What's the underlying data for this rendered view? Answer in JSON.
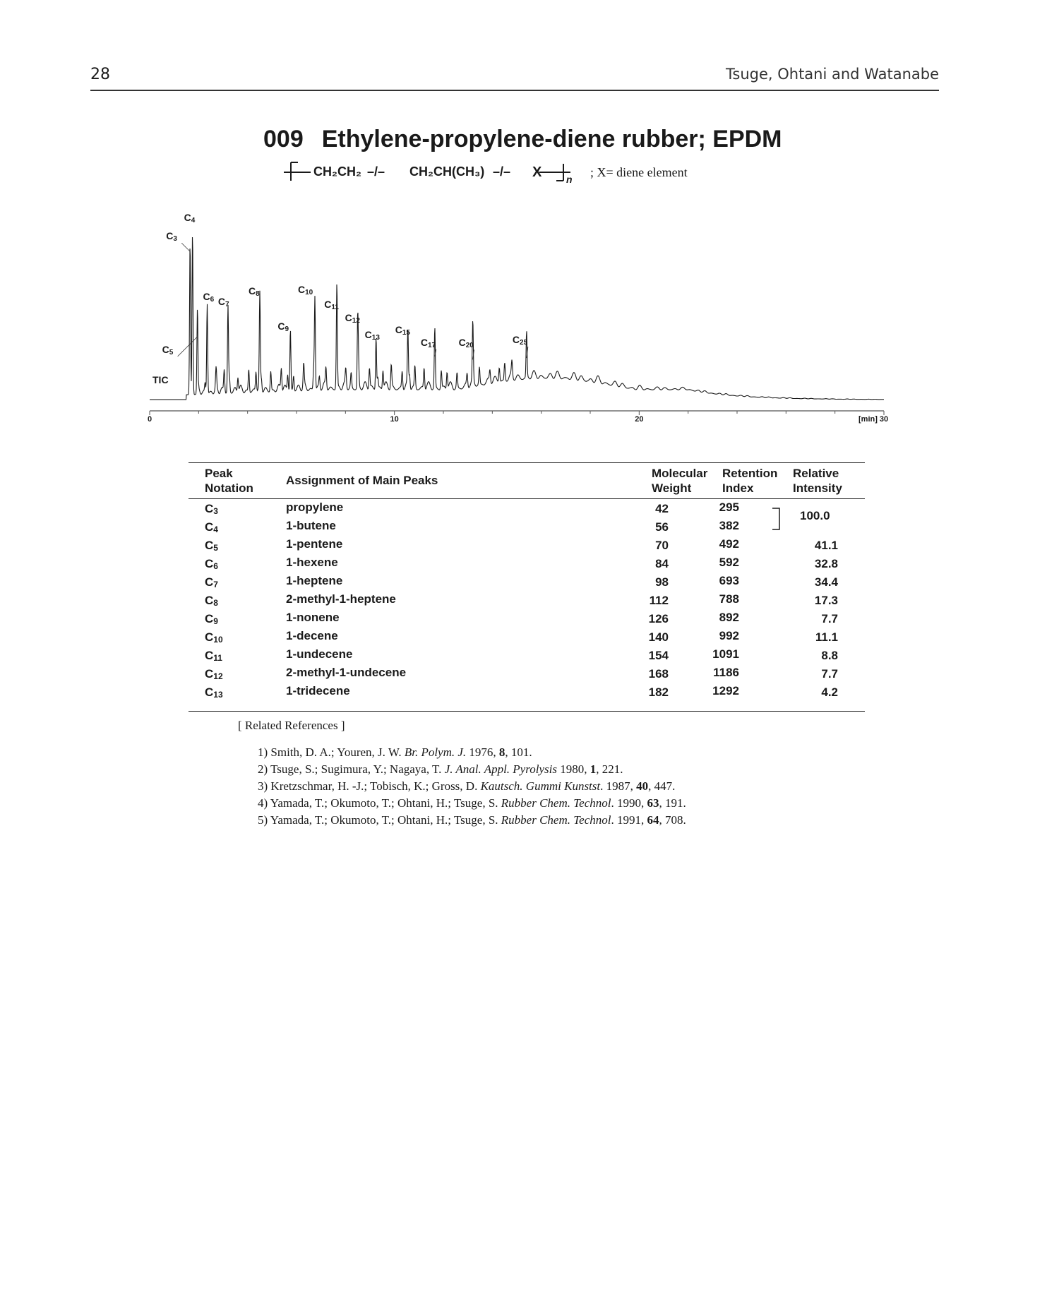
{
  "header": {
    "page_number": "28",
    "authors": "Tsuge, Ohtani and Watanabe"
  },
  "title": {
    "number": "009",
    "text": "Ethylene-propylene-diene rubber; EPDM"
  },
  "formula": {
    "part1": "CH₂CH₂",
    "sep1": "–/–",
    "part2": "CH₂CH(CH₃)",
    "sep2": "–/–",
    "part3": "X",
    "subscript": "n",
    "note": "; X= diene element"
  },
  "chart_data": {
    "type": "line",
    "trace_label": "TIC",
    "x_unit": "[min]",
    "xlim": [
      0,
      30
    ],
    "x_ticks": [
      0,
      10,
      20,
      30
    ],
    "peaks": [
      {
        "label": "C3",
        "base": "C",
        "sub": "3",
        "x": 1.65,
        "rel": 0.93
      },
      {
        "label": "C4",
        "base": "C",
        "sub": "4",
        "x": 1.75,
        "rel": 1.0
      },
      {
        "label": "C5",
        "base": "C",
        "sub": "5",
        "x": 1.95,
        "rel": 0.41
      },
      {
        "label": "C6",
        "base": "C",
        "sub": "6",
        "x": 2.35,
        "rel": 0.55
      },
      {
        "label": "C7",
        "base": "C",
        "sub": "7",
        "x": 3.2,
        "rel": 0.53
      },
      {
        "label": "C8",
        "base": "C",
        "sub": "8",
        "x": 4.5,
        "rel": 0.57
      },
      {
        "label": "C9",
        "base": "C",
        "sub": "9",
        "x": 5.75,
        "rel": 0.37
      },
      {
        "label": "C10",
        "base": "C",
        "sub": "10",
        "x": 6.75,
        "rel": 0.57
      },
      {
        "label": "C11",
        "base": "C",
        "sub": "11",
        "x": 7.65,
        "rel": 0.52
      },
      {
        "label": "C12",
        "base": "C",
        "sub": "12",
        "x": 8.5,
        "rel": 0.43
      },
      {
        "label": "C13",
        "base": "C",
        "sub": "13",
        "x": 9.25,
        "rel": 0.32
      },
      {
        "label": "C15",
        "base": "C",
        "sub": "15",
        "x": 10.55,
        "rel": 0.34
      },
      {
        "label": "C17",
        "base": "C",
        "sub": "17",
        "x": 11.65,
        "rel": 0.29
      },
      {
        "label": "C20",
        "base": "C",
        "sub": "20",
        "x": 13.2,
        "rel": 0.27
      },
      {
        "label": "C25",
        "base": "C",
        "sub": "25",
        "x": 15.4,
        "rel": 0.28
      }
    ]
  },
  "table": {
    "headers": {
      "peak": [
        "Peak",
        "Notation"
      ],
      "assignment": "Assignment of Main Peaks",
      "mw": [
        "Molecular",
        "Weight"
      ],
      "ri": [
        "Retention",
        "Index"
      ],
      "intensity": [
        "Relative",
        "Intensity"
      ]
    },
    "rows": [
      {
        "base": "C",
        "sub": "3",
        "name": "propylene",
        "mw": "42",
        "ri": "295",
        "int": ""
      },
      {
        "base": "C",
        "sub": "4",
        "name": "1-butene",
        "mw": "56",
        "ri": "382",
        "int": ""
      },
      {
        "base": "C",
        "sub": "5",
        "name": "1-pentene",
        "mw": "70",
        "ri": "492",
        "int": "41.1"
      },
      {
        "base": "C",
        "sub": "6",
        "name": "1-hexene",
        "mw": "84",
        "ri": "592",
        "int": "32.8"
      },
      {
        "base": "C",
        "sub": "7",
        "name": "1-heptene",
        "mw": "98",
        "ri": "693",
        "int": "34.4"
      },
      {
        "base": "C",
        "sub": "8",
        "name": "2-methyl-1-heptene",
        "mw": "112",
        "ri": "788",
        "int": "17.3"
      },
      {
        "base": "C",
        "sub": "9",
        "name": "1-nonene",
        "mw": "126",
        "ri": "892",
        "int": "7.7"
      },
      {
        "base": "C",
        "sub": "10",
        "name": "1-decene",
        "mw": "140",
        "ri": "992",
        "int": "11.1"
      },
      {
        "base": "C",
        "sub": "11",
        "name": "1-undecene",
        "mw": "154",
        "ri": "1091",
        "int": "8.8"
      },
      {
        "base": "C",
        "sub": "12",
        "name": "2-methyl-1-undecene",
        "mw": "168",
        "ri": "1186",
        "int": "7.7"
      },
      {
        "base": "C",
        "sub": "13",
        "name": "1-tridecene",
        "mw": "182",
        "ri": "1292",
        "int": "4.2"
      }
    ],
    "c3c4_intensity": "100.0"
  },
  "references": {
    "heading": "[ Related References ]",
    "items": [
      {
        "pre": "1) Smith, D. A.; Youren, J. W. ",
        "journal": "Br. Polym. J.",
        "year": " 1976, ",
        "vol": "8",
        "pages": ", 101."
      },
      {
        "pre": "2) Tsuge, S.; Sugimura, Y.; Nagaya, T. ",
        "journal": "J. Anal. Appl. Pyrolysis",
        "year": " 1980, ",
        "vol": "1",
        "pages": ", 221."
      },
      {
        "pre": "3) Kretzschmar, H. -J.; Tobisch, K.; Gross, D. ",
        "journal": "Kautsch. Gummi Kunstst",
        "year": ". 1987, ",
        "vol": "40",
        "pages": ", 447."
      },
      {
        "pre": "4) Yamada, T.; Okumoto, T.; Ohtani, H.; Tsuge, S. ",
        "journal": "Rubber Chem. Technol",
        "year": ". 1990, ",
        "vol": "63",
        "pages": ", 191."
      },
      {
        "pre": "5) Yamada, T.; Okumoto, T.; Ohtani, H.; Tsuge, S. ",
        "journal": "Rubber Chem. Technol",
        "year": ". 1991, ",
        "vol": "64",
        "pages": ", 708."
      }
    ]
  }
}
